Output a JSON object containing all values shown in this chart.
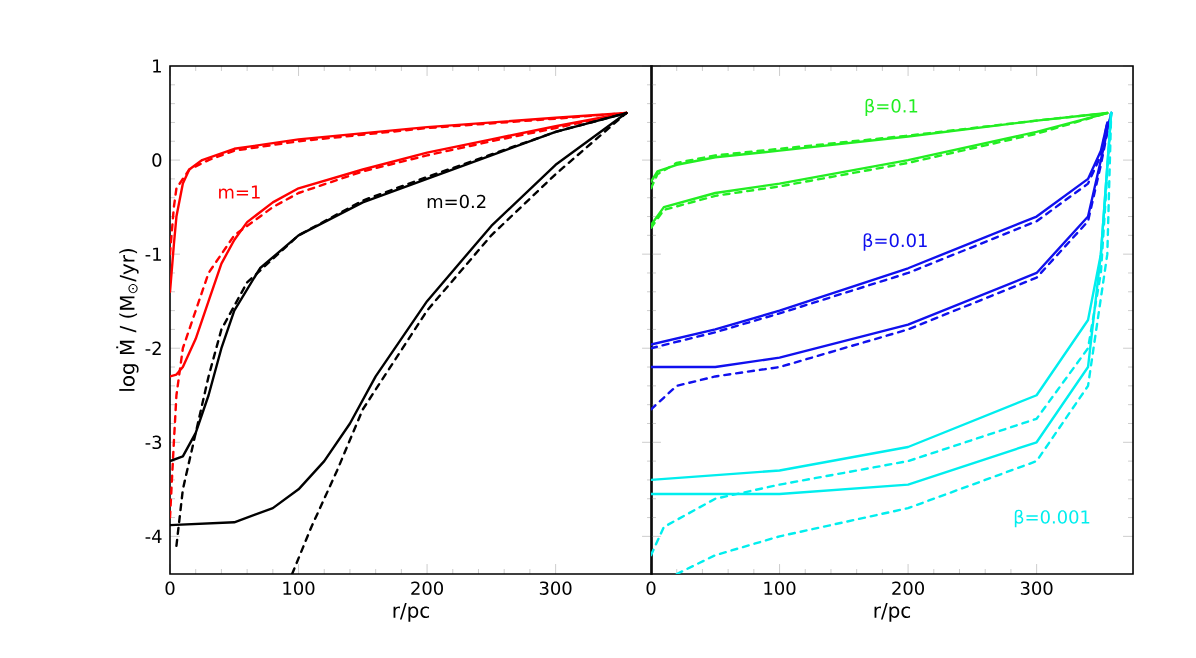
{
  "chart_data": [
    {
      "type": "line",
      "xlabel": "r/pc",
      "ylabel": "log Ṁ / (M$_{⊙}$/yr)",
      "xlim": [
        0,
        375
      ],
      "ylim": [
        -4.4,
        1
      ],
      "xticks": [
        0,
        100,
        200,
        300
      ],
      "yticks": [
        -4,
        -3,
        -2,
        -1,
        0,
        1
      ],
      "series": [
        {
          "color": "#ff0000",
          "line_style": "solid",
          "x": [
            0,
            3,
            5,
            10,
            15,
            25,
            50,
            100,
            200,
            300,
            355
          ],
          "values": [
            -1.4,
            -0.9,
            -0.6,
            -0.25,
            -0.1,
            0.0,
            0.12,
            0.22,
            0.35,
            0.45,
            0.5
          ]
        },
        {
          "color": "#ff0000",
          "line_style": "dashed",
          "x": [
            0,
            3,
            5,
            15,
            30,
            50,
            100,
            200,
            300,
            355
          ],
          "values": [
            -1.0,
            -0.5,
            -0.3,
            -0.1,
            0.0,
            0.1,
            0.2,
            0.34,
            0.44,
            0.5
          ]
        },
        {
          "color": "#ff0000",
          "line_style": "solid",
          "x": [
            0,
            5,
            10,
            20,
            30,
            40,
            50,
            60,
            80,
            100,
            150,
            200,
            250,
            300,
            355
          ],
          "values": [
            -2.3,
            -2.28,
            -2.2,
            -1.9,
            -1.5,
            -1.1,
            -0.85,
            -0.66,
            -0.45,
            -0.3,
            -0.1,
            0.08,
            0.22,
            0.36,
            0.5
          ]
        },
        {
          "color": "#ff0000",
          "line_style": "dashed",
          "x": [
            0,
            3,
            5,
            10,
            20,
            30,
            50,
            80,
            100,
            150,
            200,
            250,
            300,
            355
          ],
          "values": [
            -3.8,
            -3.0,
            -2.5,
            -2.0,
            -1.6,
            -1.2,
            -0.8,
            -0.5,
            -0.35,
            -0.12,
            0.05,
            0.2,
            0.34,
            0.5
          ]
        },
        {
          "color": "#000000",
          "line_style": "solid",
          "x": [
            0,
            10,
            20,
            30,
            40,
            50,
            70,
            100,
            150,
            200,
            250,
            300,
            355
          ],
          "values": [
            -3.2,
            -3.15,
            -2.9,
            -2.5,
            -2.0,
            -1.6,
            -1.15,
            -0.8,
            -0.45,
            -0.2,
            0.05,
            0.3,
            0.5
          ]
        },
        {
          "color": "#000000",
          "line_style": "dashed",
          "x": [
            5,
            10,
            20,
            30,
            40,
            60,
            100,
            150,
            200,
            250,
            300,
            355
          ],
          "values": [
            -4.1,
            -3.5,
            -2.9,
            -2.3,
            -1.8,
            -1.3,
            -0.8,
            -0.43,
            -0.18,
            0.06,
            0.3,
            0.5
          ]
        },
        {
          "color": "#000000",
          "line_style": "solid",
          "x": [
            0,
            50,
            80,
            100,
            120,
            140,
            160,
            200,
            250,
            300,
            355
          ],
          "values": [
            -3.88,
            -3.85,
            -3.7,
            -3.5,
            -3.2,
            -2.8,
            -2.3,
            -1.5,
            -0.7,
            -0.05,
            0.5
          ]
        },
        {
          "color": "#000000",
          "line_style": "dashed",
          "x": [
            95,
            110,
            130,
            150,
            200,
            250,
            300,
            355
          ],
          "values": [
            -4.4,
            -3.9,
            -3.3,
            -2.65,
            -1.6,
            -0.8,
            -0.15,
            0.5
          ]
        }
      ],
      "annotations": [
        "m=1",
        "m=0.2"
      ]
    },
    {
      "type": "line",
      "xlabel": "r/pc",
      "xlim": [
        0,
        375
      ],
      "ylim": [
        -4.4,
        1
      ],
      "xticks": [
        0,
        100,
        200,
        300
      ],
      "yticks": [
        -4,
        -3,
        -2,
        -1,
        0,
        1
      ],
      "tick_labels": "x",
      "series": [
        {
          "color": "#22ee22",
          "line_style": "solid",
          "x": [
            0,
            5,
            20,
            50,
            100,
            200,
            300,
            355
          ],
          "values": [
            -0.23,
            -0.12,
            -0.05,
            0.03,
            0.1,
            0.25,
            0.42,
            0.5
          ]
        },
        {
          "color": "#22ee22",
          "line_style": "dashed",
          "x": [
            0,
            5,
            20,
            50,
            100,
            200,
            300,
            355
          ],
          "values": [
            -0.3,
            -0.15,
            -0.03,
            0.05,
            0.12,
            0.26,
            0.42,
            0.5
          ]
        },
        {
          "color": "#22ee22",
          "line_style": "solid",
          "x": [
            0,
            10,
            50,
            100,
            200,
            300,
            355
          ],
          "values": [
            -0.69,
            -0.5,
            -0.35,
            -0.25,
            0.0,
            0.3,
            0.5
          ]
        },
        {
          "color": "#22ee22",
          "line_style": "dashed",
          "x": [
            0,
            10,
            50,
            100,
            200,
            300,
            355
          ],
          "values": [
            -0.72,
            -0.53,
            -0.38,
            -0.28,
            -0.03,
            0.28,
            0.5
          ]
        },
        {
          "color": "#1010ee",
          "line_style": "solid",
          "x": [
            0,
            50,
            100,
            200,
            300,
            340,
            350,
            355
          ],
          "values": [
            -1.96,
            -1.8,
            -1.6,
            -1.15,
            -0.6,
            -0.2,
            0.1,
            0.4
          ]
        },
        {
          "color": "#1010ee",
          "line_style": "dashed",
          "x": [
            0,
            50,
            100,
            200,
            300,
            340,
            350,
            355
          ],
          "values": [
            -2.0,
            -1.83,
            -1.63,
            -1.2,
            -0.65,
            -0.25,
            0.05,
            0.4
          ]
        },
        {
          "color": "#1010ee",
          "line_style": "solid",
          "x": [
            0,
            50,
            100,
            200,
            300,
            340,
            350,
            358
          ],
          "values": [
            -2.2,
            -2.2,
            -2.1,
            -1.75,
            -1.2,
            -0.6,
            0.0,
            0.5
          ]
        },
        {
          "color": "#1010ee",
          "line_style": "dashed",
          "x": [
            0,
            20,
            50,
            100,
            200,
            300,
            340,
            350,
            358
          ],
          "values": [
            -2.65,
            -2.4,
            -2.3,
            -2.2,
            -1.8,
            -1.25,
            -0.65,
            -0.05,
            0.5
          ]
        },
        {
          "color": "#00eeee",
          "line_style": "solid",
          "x": [
            0,
            100,
            200,
            300,
            340,
            350,
            358
          ],
          "values": [
            -3.4,
            -3.3,
            -3.05,
            -2.5,
            -1.7,
            -1.0,
            0.5
          ]
        },
        {
          "color": "#00eeee",
          "line_style": "dashed",
          "x": [
            0,
            10,
            50,
            100,
            200,
            300,
            340,
            350,
            358
          ],
          "values": [
            -4.2,
            -3.9,
            -3.6,
            -3.45,
            -3.2,
            -2.75,
            -2.0,
            -1.2,
            0.5
          ]
        },
        {
          "color": "#00eeee",
          "line_style": "solid",
          "x": [
            0,
            100,
            200,
            300,
            340,
            350,
            358
          ],
          "values": [
            -3.55,
            -3.55,
            -3.45,
            -3.0,
            -2.2,
            -1.0,
            0.5
          ]
        },
        {
          "color": "#00eeee",
          "line_style": "dashed",
          "x": [
            20,
            50,
            100,
            200,
            300,
            340,
            355,
            358
          ],
          "values": [
            -4.4,
            -4.2,
            -4.0,
            -3.7,
            -3.2,
            -2.4,
            -1.0,
            0.5
          ]
        }
      ],
      "annotations": [
        "β=0.1",
        "β=0.01",
        "β=0.001"
      ]
    }
  ]
}
